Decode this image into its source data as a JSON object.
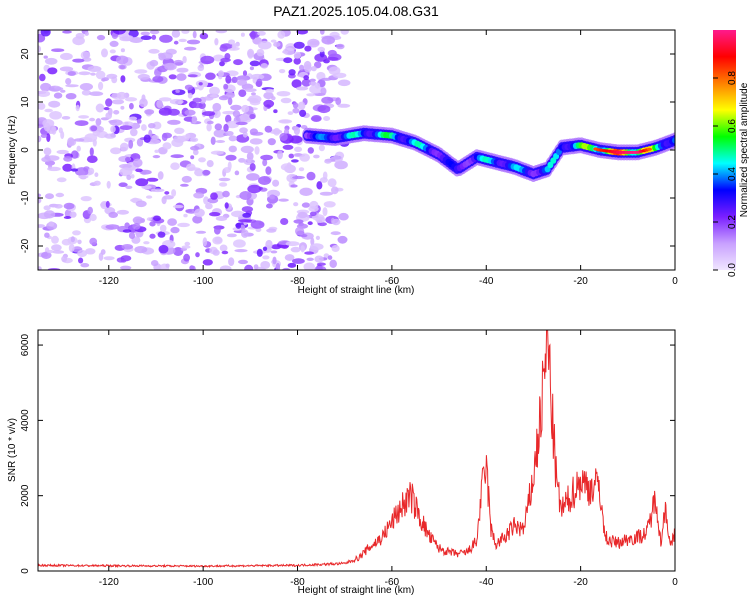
{
  "title": "PAZ1.2025.105.04.08.G31",
  "chart_data": [
    {
      "type": "heatmap",
      "title": "PAZ1.2025.105.04.08.G31",
      "xlabel": "Height of straight line (km)",
      "ylabel": "Frequency (Hz)",
      "xlim": [
        -135,
        0
      ],
      "ylim": [
        -25,
        25
      ],
      "x_ticks": [
        -120,
        -100,
        -80,
        -60,
        -40,
        -20,
        0
      ],
      "y_ticks": [
        -20,
        -10,
        0,
        10,
        20
      ],
      "colorbar": {
        "label": "Normalized spectral amplitude",
        "range": [
          0,
          1
        ],
        "ticks": [
          0.0,
          0.2,
          0.4,
          0.6,
          0.8
        ],
        "colormap": [
          "#f0e6ff",
          "#c8a0ff",
          "#7a1fff",
          "#0000ff",
          "#00ffff",
          "#00ff00",
          "#ffff00",
          "#ff8000",
          "#ff0000",
          "#ff1a8c"
        ]
      },
      "ridge": {
        "x": [
          -78,
          -72,
          -66,
          -60,
          -55,
          -50,
          -46,
          -42,
          -38,
          -34,
          -30,
          -27,
          -24,
          -20,
          -16,
          -12,
          -8,
          -4,
          0
        ],
        "frequency": [
          3,
          2.5,
          3.5,
          3,
          1.5,
          -1,
          -4,
          -1.5,
          -2.5,
          -3.5,
          -5,
          -4,
          0.5,
          1,
          0,
          -0.5,
          -0.5,
          0.5,
          2
        ],
        "amplitude": [
          0.35,
          0.45,
          0.5,
          0.55,
          0.5,
          0.4,
          0.3,
          0.45,
          0.5,
          0.45,
          0.4,
          0.45,
          0.5,
          0.6,
          0.75,
          0.85,
          0.9,
          0.6,
          0.5
        ]
      },
      "noise_region_x": [
        -135,
        -70
      ]
    },
    {
      "type": "line",
      "xlabel": "Height of straight line (km)",
      "ylabel": "SNR (10 * v/v)",
      "xlim": [
        -135,
        0
      ],
      "ylim": [
        0,
        6400
      ],
      "x_ticks": [
        -120,
        -100,
        -80,
        -60,
        -40,
        -20,
        0
      ],
      "y_ticks": [
        0,
        2000,
        4000,
        6000
      ],
      "color": "#e8282a",
      "series": [
        {
          "x": [
            -135,
            -120,
            -100,
            -80,
            -70,
            -67,
            -65,
            -62,
            -60,
            -58,
            -56,
            -54,
            -52,
            -50,
            -48,
            -46,
            -44,
            -42,
            -41,
            -40,
            -39,
            -38,
            -36,
            -34,
            -32,
            -30,
            -29,
            -28,
            -27,
            -26,
            -25,
            -24,
            -22,
            -20,
            -18,
            -16,
            -15,
            -14,
            -12,
            -10,
            -8,
            -6,
            -4,
            -3,
            -2,
            -1,
            0
          ],
          "y": [
            150,
            140,
            130,
            150,
            200,
            350,
            600,
            900,
            1300,
            1700,
            2000,
            1400,
            900,
            600,
            500,
            450,
            500,
            800,
            2100,
            2800,
            1100,
            700,
            900,
            1200,
            1100,
            2500,
            3500,
            4700,
            6300,
            4000,
            2200,
            1600,
            2000,
            2400,
            2200,
            2300,
            1000,
            800,
            750,
            850,
            900,
            1000,
            2000,
            700,
            1800,
            600,
            1000
          ]
        }
      ]
    }
  ]
}
